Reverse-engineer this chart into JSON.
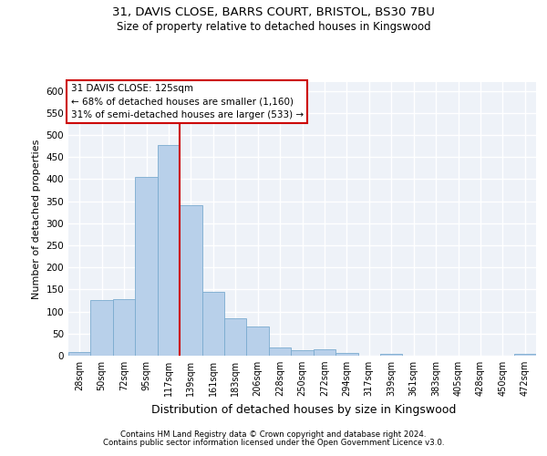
{
  "title1": "31, DAVIS CLOSE, BARRS COURT, BRISTOL, BS30 7BU",
  "title2": "Size of property relative to detached houses in Kingswood",
  "xlabel": "Distribution of detached houses by size in Kingswood",
  "ylabel": "Number of detached properties",
  "categories": [
    "28sqm",
    "50sqm",
    "72sqm",
    "95sqm",
    "117sqm",
    "139sqm",
    "161sqm",
    "183sqm",
    "206sqm",
    "228sqm",
    "250sqm",
    "272sqm",
    "294sqm",
    "317sqm",
    "339sqm",
    "361sqm",
    "383sqm",
    "405sqm",
    "428sqm",
    "450sqm",
    "472sqm"
  ],
  "values": [
    9,
    127,
    128,
    405,
    477,
    342,
    145,
    84,
    67,
    19,
    12,
    14,
    7,
    0,
    5,
    0,
    0,
    0,
    0,
    0,
    5
  ],
  "bar_color": "#b8d0ea",
  "bar_edge_color": "#7aabcf",
  "vline_x": 4.5,
  "vline_color": "#cc0000",
  "annotation_line1": "31 DAVIS CLOSE: 125sqm",
  "annotation_line2": "← 68% of detached houses are smaller (1,160)",
  "annotation_line3": "31% of semi-detached houses are larger (533) →",
  "annotation_box_color": "#ffffff",
  "annotation_box_edge": "#cc0000",
  "footer1": "Contains HM Land Registry data © Crown copyright and database right 2024.",
  "footer2": "Contains public sector information licensed under the Open Government Licence v3.0.",
  "ylim": [
    0,
    620
  ],
  "yticks": [
    0,
    50,
    100,
    150,
    200,
    250,
    300,
    350,
    400,
    450,
    500,
    550,
    600
  ],
  "bg_color": "#eef2f8",
  "grid_color": "#ffffff"
}
